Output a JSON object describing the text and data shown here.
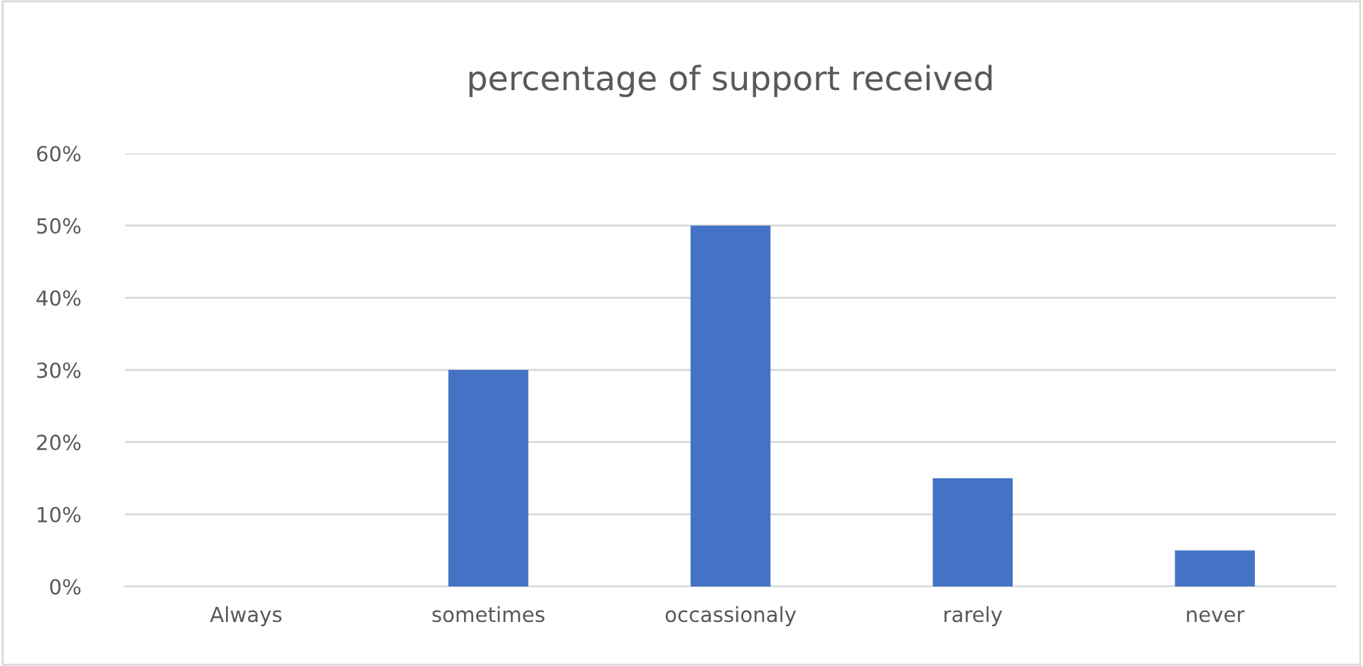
{
  "chart_data": {
    "type": "bar",
    "title": "percentage of support received",
    "categories": [
      "Always",
      "sometimes",
      "occassionaly",
      "rarely",
      "never"
    ],
    "values": [
      0,
      30,
      50,
      15,
      5
    ],
    "color": "#4472c4",
    "ylim": [
      0,
      60
    ],
    "yticks": [
      {
        "value": 0,
        "label": "0%"
      },
      {
        "value": 10,
        "label": "10%"
      },
      {
        "value": 20,
        "label": "20%"
      },
      {
        "value": 30,
        "label": "30%"
      },
      {
        "value": 40,
        "label": "40%"
      },
      {
        "value": 50,
        "label": "50%"
      },
      {
        "value": 60,
        "label": "60%"
      }
    ],
    "grid": "y"
  }
}
